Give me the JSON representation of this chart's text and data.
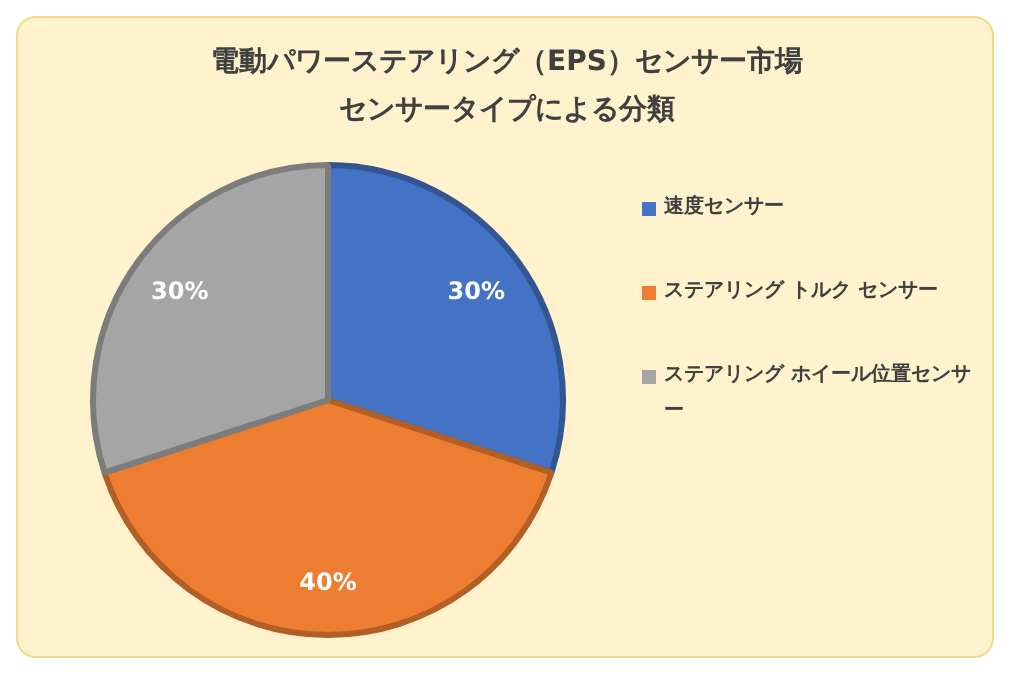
{
  "chart_data": {
    "type": "pie",
    "title": "電動パワーステアリング（EPS）センサー市場",
    "subtitle": "センサータイプによる分類",
    "categories": [
      "速度センサー",
      "ステアリング トルク センサー",
      "ステアリング ホイール位置センサー"
    ],
    "values": [
      30,
      40,
      30
    ],
    "colors": [
      "#4472c4",
      "#ed7d31",
      "#a5a5a5"
    ],
    "value_labels": [
      "30%",
      "40%",
      "30%"
    ],
    "legend": "right"
  }
}
